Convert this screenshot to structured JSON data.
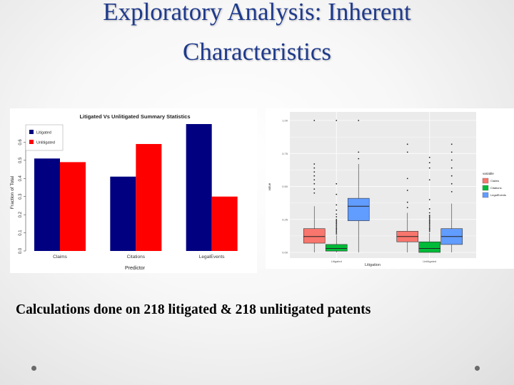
{
  "slide": {
    "title_line1": "Exploratory Analysis: Inherent",
    "title_line2": "Characteristics",
    "caption": "Calculations done on 218 litigated & 218 unlitigated patents",
    "colors": {
      "title": "#1f3a8c",
      "caption": "#000000",
      "bullet": "#6a6a6a"
    }
  },
  "chart_data": [
    {
      "type": "bar",
      "title": "Litigated Vs Unlitigated Summary Statistics",
      "xlabel": "Predictor",
      "ylabel": "Fraction of Total",
      "categories": [
        "Claims",
        "Citations",
        "LegalEvents"
      ],
      "series": [
        {
          "name": "Litigated",
          "color": "#000080",
          "values": [
            0.51,
            0.41,
            0.7
          ]
        },
        {
          "name": "Unlitigated",
          "color": "#ff0000",
          "values": [
            0.49,
            0.59,
            0.3
          ]
        }
      ],
      "ylim": [
        0,
        0.7
      ],
      "yticks": [
        "0.0",
        "0.1",
        "0.2",
        "0.3",
        "0.4",
        "0.5",
        "0.6"
      ],
      "legend_position": "top-left",
      "grid": false
    },
    {
      "type": "box",
      "xlabel": "Litigation",
      "ylabel": "value",
      "categories": [
        "Litigated",
        "Unlitigated"
      ],
      "ylim": [
        0,
        1
      ],
      "yticks": [
        "0.00",
        "0.25",
        "0.50",
        "0.75",
        "1.00"
      ],
      "legend_title": "variable",
      "legend_position": "right",
      "grid": true,
      "background": "#ebebeb",
      "series": [
        {
          "name": "Claims",
          "color": "#f8766d",
          "boxes": [
            {
              "category": "Litigated",
              "whisker_low": 0.0,
              "q1": 0.07,
              "median": 0.12,
              "q3": 0.18,
              "whisker_high": 0.35,
              "outliers": [
                0.45,
                0.48,
                0.52,
                0.55,
                0.58,
                0.61,
                0.64,
                0.67,
                1.0
              ]
            },
            {
              "category": "Unlitigated",
              "whisker_low": 0.0,
              "q1": 0.08,
              "median": 0.12,
              "q3": 0.16,
              "whisker_high": 0.3,
              "outliers": [
                0.34,
                0.38,
                0.47,
                0.56,
                0.76,
                0.82
              ]
            }
          ]
        },
        {
          "name": "Citations",
          "color": "#00ba38",
          "boxes": [
            {
              "category": "Litigated",
              "whisker_low": 0.0,
              "q1": 0.01,
              "median": 0.03,
              "q3": 0.06,
              "whisker_high": 0.13,
              "outliers": [
                0.14,
                0.15,
                0.16,
                0.17,
                0.18,
                0.19,
                0.2,
                0.21,
                0.22,
                0.23,
                0.24,
                0.25,
                0.27,
                0.29,
                0.32,
                0.36,
                0.44,
                0.52,
                1.0
              ]
            },
            {
              "category": "Unlitigated",
              "whisker_low": 0.0,
              "q1": 0.0,
              "median": 0.03,
              "q3": 0.08,
              "whisker_high": 0.15,
              "outliers": [
                0.16,
                0.17,
                0.18,
                0.19,
                0.2,
                0.21,
                0.22,
                0.23,
                0.24,
                0.25,
                0.26,
                0.27,
                0.28,
                0.3,
                0.33,
                0.4,
                0.55,
                0.64,
                0.68,
                0.72
              ]
            }
          ]
        },
        {
          "name": "LegalEvents",
          "color": "#619cff",
          "boxes": [
            {
              "category": "Litigated",
              "whisker_low": 0.0,
              "q1": 0.24,
              "median": 0.35,
              "q3": 0.41,
              "whisker_high": 0.67,
              "outliers": [
                0.71,
                0.76,
                1.0
              ]
            },
            {
              "category": "Unlitigated",
              "whisker_low": 0.0,
              "q1": 0.06,
              "median": 0.12,
              "q3": 0.18,
              "whisker_high": 0.37,
              "outliers": [
                0.46,
                0.52,
                0.58,
                0.64,
                0.7,
                0.76,
                0.82
              ]
            }
          ]
        }
      ]
    }
  ]
}
